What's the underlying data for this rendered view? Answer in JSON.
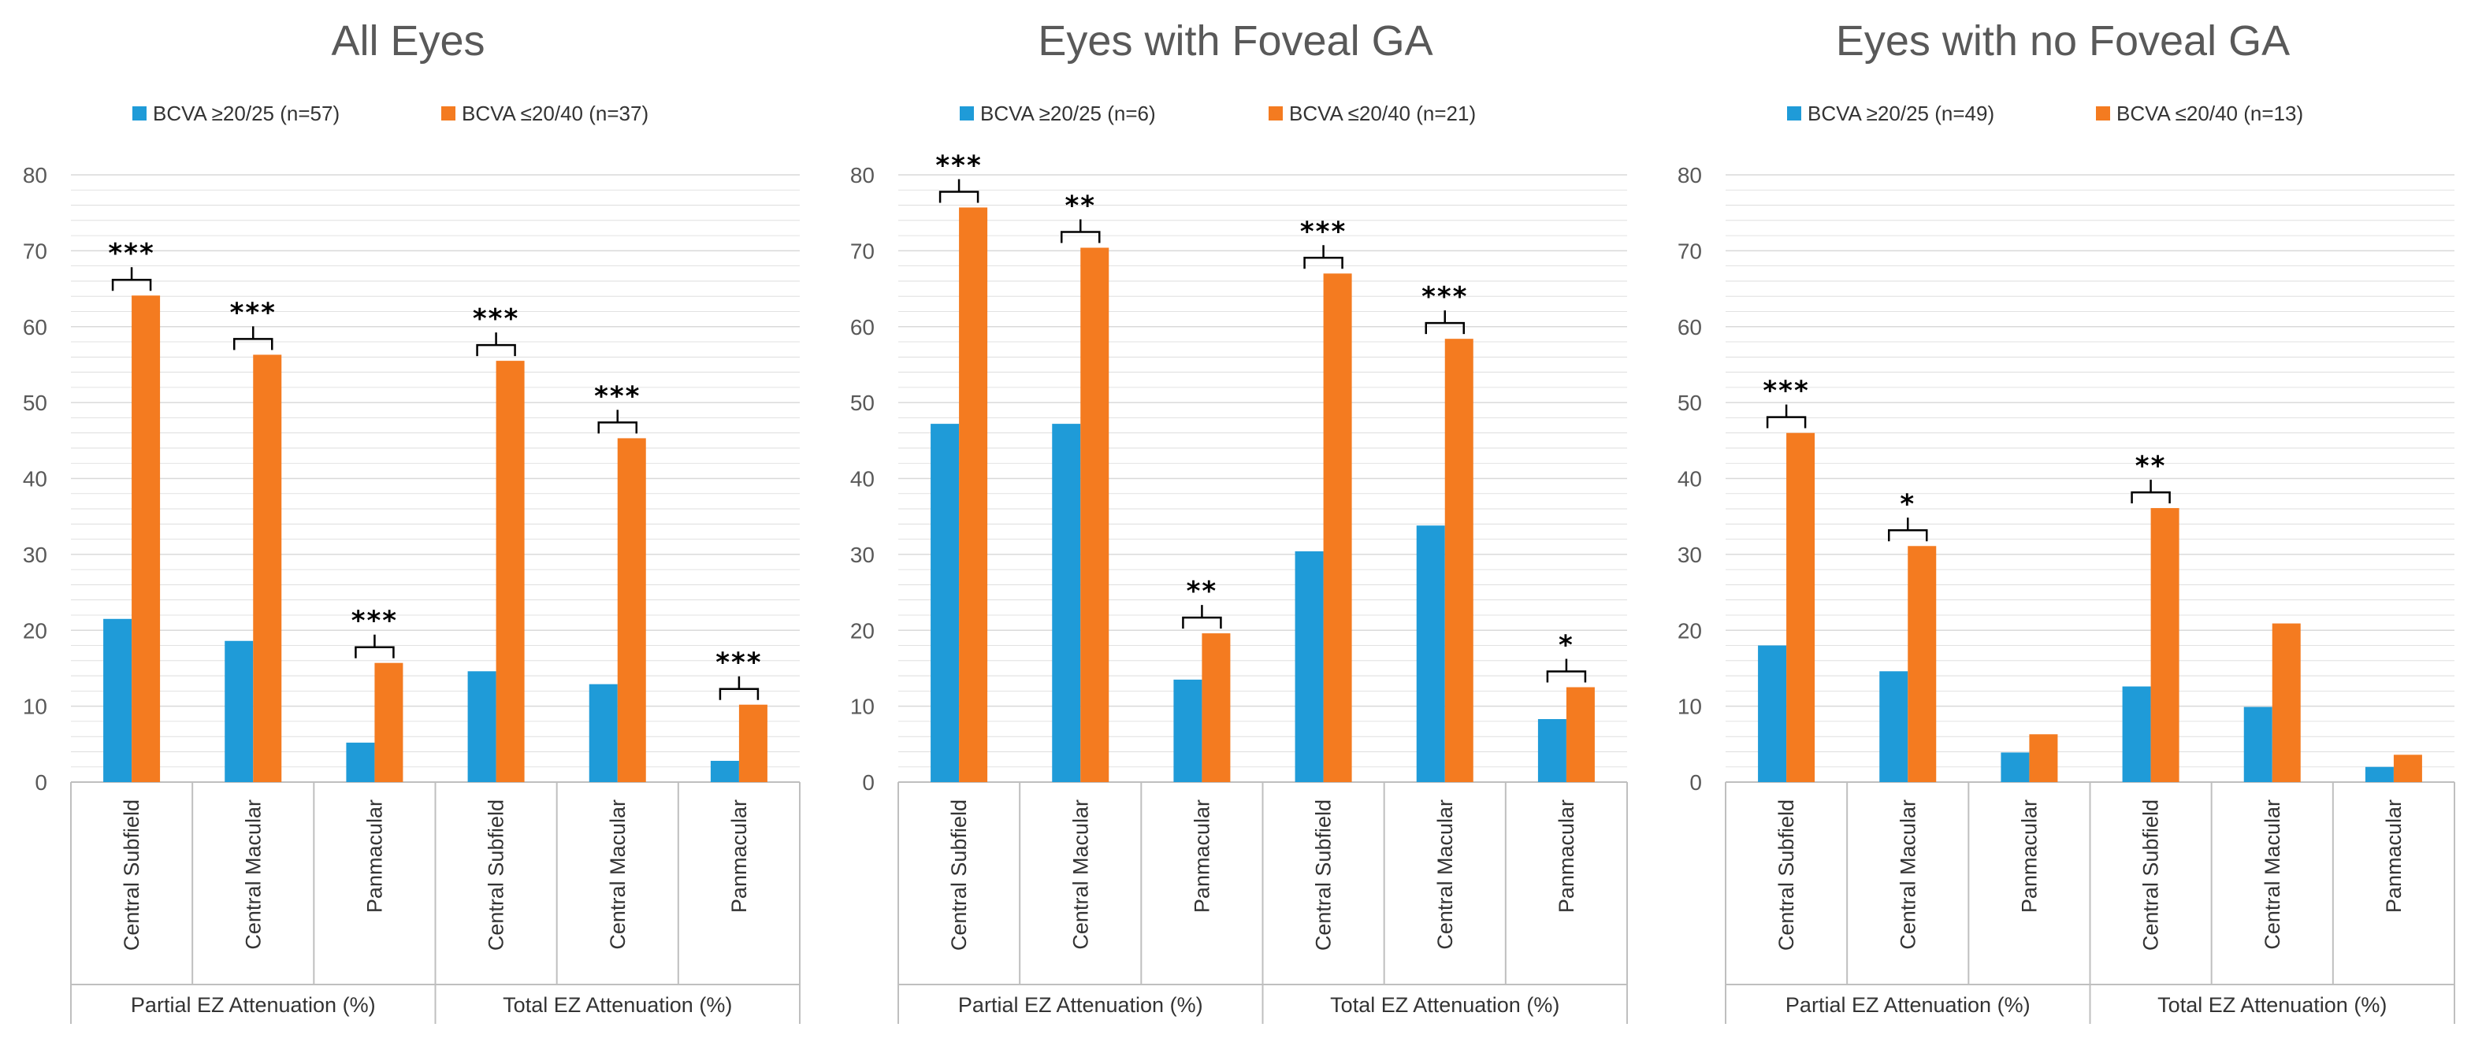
{
  "colors": {
    "good": "#1f9bd8",
    "poor": "#f47b20",
    "grid": "#d9d9d9",
    "axis": "#bfbfbf"
  },
  "chart_data": [
    {
      "type": "bar",
      "title": "All Eyes",
      "ylim": [
        0,
        80
      ],
      "yticks": [
        0,
        10,
        20,
        30,
        40,
        50,
        60,
        70,
        80
      ],
      "categories": [
        "Central Subfield",
        "Central Macular",
        "Panmacular",
        "Central Subfield",
        "Central Macular",
        "Panmacular"
      ],
      "groups": [
        "Partial EZ Attenuation (%)",
        "Total EZ Attenuation (%)"
      ],
      "series": [
        {
          "name": "BCVA ≥20/25 (n=57)",
          "values": [
            21.5,
            18.6,
            5.2,
            14.6,
            12.9,
            2.8
          ]
        },
        {
          "name": "BCVA ≤20/40 (n=37)",
          "values": [
            64.1,
            56.3,
            15.7,
            55.5,
            45.3,
            10.2
          ]
        }
      ],
      "significance": [
        "***",
        "***",
        "***",
        "***",
        "***",
        "***"
      ]
    },
    {
      "type": "bar",
      "title": "Eyes with Foveal GA",
      "ylim": [
        0,
        80
      ],
      "yticks": [
        0,
        10,
        20,
        30,
        40,
        50,
        60,
        70,
        80
      ],
      "categories": [
        "Central Subfield",
        "Central Macular",
        "Panmacular",
        "Central Subfield",
        "Central Macular",
        "Panmacular"
      ],
      "groups": [
        "Partial EZ Attenuation (%)",
        "Total EZ Attenuation (%)"
      ],
      "series": [
        {
          "name": "BCVA ≥20/25 (n=6)",
          "values": [
            47.2,
            47.2,
            13.5,
            30.4,
            33.8,
            8.3
          ]
        },
        {
          "name": "BCVA ≤20/40 (n=21)",
          "values": [
            75.7,
            70.4,
            19.6,
            67.0,
            58.4,
            12.5
          ]
        }
      ],
      "significance": [
        "***",
        "**",
        "**",
        "***",
        "***",
        "*"
      ]
    },
    {
      "type": "bar",
      "title": "Eyes with no Foveal GA",
      "ylim": [
        0,
        80
      ],
      "yticks": [
        0,
        10,
        20,
        30,
        40,
        50,
        60,
        70,
        80
      ],
      "categories": [
        "Central Subfield",
        "Central Macular",
        "Panmacular",
        "Central Subfield",
        "Central Macular",
        "Panmacular"
      ],
      "groups": [
        "Partial EZ Attenuation (%)",
        "Total EZ Attenuation (%)"
      ],
      "series": [
        {
          "name": "BCVA ≥20/25 (n=49)",
          "values": [
            18.0,
            14.6,
            3.9,
            12.6,
            9.9,
            2.0
          ]
        },
        {
          "name": "BCVA ≤20/40 (n=13)",
          "values": [
            46.0,
            31.1,
            6.3,
            36.1,
            20.9,
            3.6
          ]
        }
      ],
      "significance": [
        "***",
        "*",
        "",
        "**",
        "",
        ""
      ]
    }
  ]
}
